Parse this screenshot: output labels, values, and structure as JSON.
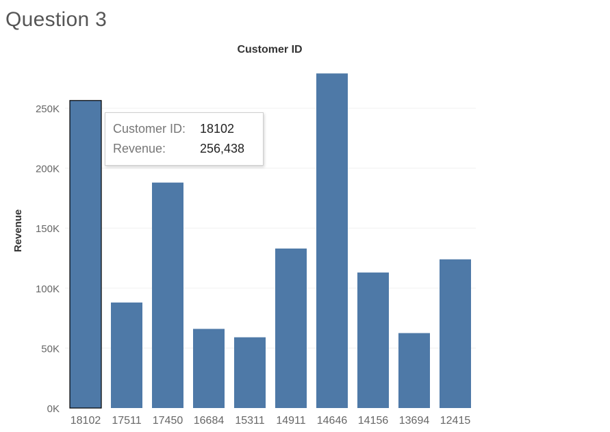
{
  "page": {
    "title": "Question 3"
  },
  "chart_data": {
    "type": "bar",
    "column_header": "Customer ID",
    "xlabel": "",
    "ylabel": "Revenue",
    "categories": [
      "18102",
      "17511",
      "17450",
      "16684",
      "15311",
      "14911",
      "14646",
      "14156",
      "13694",
      "12415"
    ],
    "values": [
      256438,
      88000,
      188000,
      66000,
      59000,
      133000,
      279000,
      113000,
      62500,
      124000
    ],
    "ylim": [
      0,
      290000
    ],
    "yticks": [
      0,
      50000,
      100000,
      150000,
      200000,
      250000
    ],
    "ytick_labels": [
      "0K",
      "50K",
      "100K",
      "150K",
      "200K",
      "250K"
    ],
    "bar_color": "#4e79a7",
    "selected_index": 0,
    "grid": true
  },
  "tooltip": {
    "customer_key": "Customer ID:",
    "customer_value": "18102",
    "revenue_key": "Revenue:",
    "revenue_value": "256,438"
  }
}
